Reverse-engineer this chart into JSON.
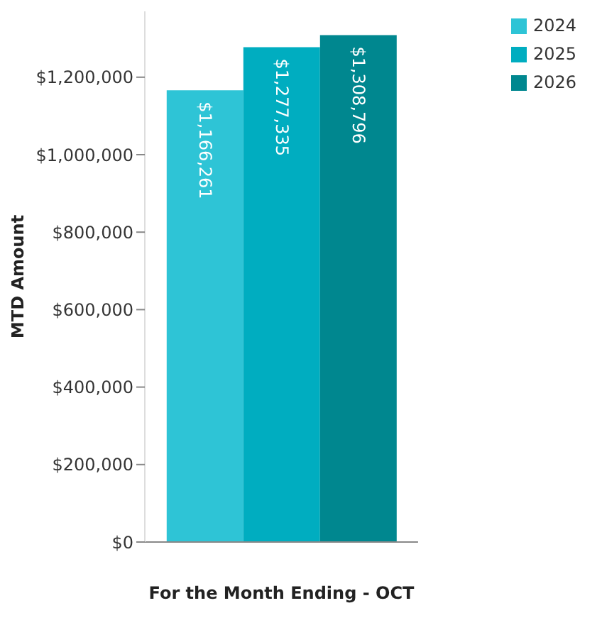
{
  "chart_data": {
    "type": "bar",
    "xlabel": "For the Month Ending - OCT",
    "ylabel": "MTD Amount",
    "categories": [
      null
    ],
    "series": [
      {
        "name": "2024",
        "color": "#2ec4d6",
        "values": [
          1166261
        ],
        "value_labels": [
          "$1,166,261"
        ]
      },
      {
        "name": "2025",
        "color": "#00adc0",
        "values": [
          1277335
        ],
        "value_labels": [
          "$1,277,335"
        ]
      },
      {
        "name": "2026",
        "color": "#00878f",
        "values": [
          1308796
        ],
        "value_labels": [
          "$1,308,796"
        ]
      }
    ],
    "ylim": [
      0,
      1370000
    ],
    "yticks": [
      {
        "value": 0,
        "label": "$0"
      },
      {
        "value": 200000,
        "label": "$200,000"
      },
      {
        "value": 400000,
        "label": "$400,000"
      },
      {
        "value": 600000,
        "label": "$600,000"
      },
      {
        "value": 800000,
        "label": "$800,000"
      },
      {
        "value": 1000000,
        "label": "$1,000,000"
      },
      {
        "value": 1200000,
        "label": "$1,200,000"
      }
    ],
    "grid": false,
    "legend": "top right"
  }
}
